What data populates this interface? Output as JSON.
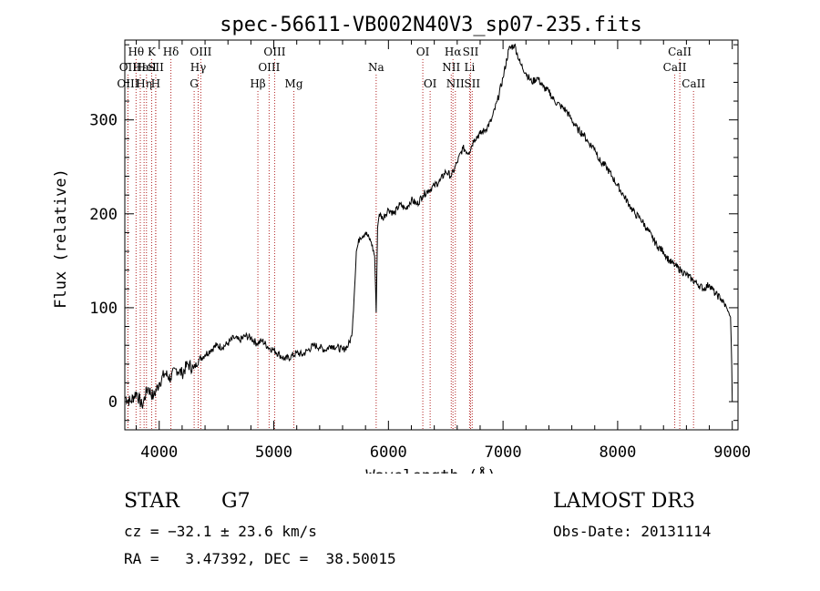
{
  "colors": {
    "spectrum": "#000000",
    "line_marker": "#b22222",
    "axis": "#000000",
    "background": "#ffffff"
  },
  "chart_data": {
    "type": "line",
    "title": "spec-56611-VB002N40V3_sp07-235.fits",
    "xlabel": "Wavelength (Å)",
    "ylabel": "Flux (relative)",
    "xlim": [
      3700,
      9050
    ],
    "ylim": [
      -30,
      385
    ],
    "xticks": [
      4000,
      5000,
      6000,
      7000,
      8000,
      9000
    ],
    "yticks": [
      0,
      100,
      200,
      300
    ],
    "grid": false,
    "series": [
      {
        "name": "spectrum",
        "x": [
          3700,
          3750,
          3800,
          3850,
          3900,
          3950,
          4000,
          4050,
          4100,
          4150,
          4200,
          4250,
          4300,
          4350,
          4400,
          4450,
          4500,
          4550,
          4600,
          4650,
          4700,
          4750,
          4800,
          4850,
          4900,
          4950,
          5000,
          5050,
          5100,
          5150,
          5200,
          5250,
          5300,
          5350,
          5400,
          5450,
          5500,
          5550,
          5600,
          5650,
          5680,
          5700,
          5720,
          5750,
          5800,
          5850,
          5880,
          5893,
          5905,
          5920,
          5950,
          6000,
          6050,
          6100,
          6150,
          6200,
          6250,
          6300,
          6350,
          6400,
          6450,
          6500,
          6550,
          6600,
          6650,
          6700,
          6750,
          6800,
          6850,
          6900,
          6950,
          7000,
          7050,
          7100,
          7150,
          7200,
          7250,
          7300,
          7350,
          7400,
          7450,
          7500,
          7550,
          7600,
          7650,
          7700,
          7750,
          7800,
          7850,
          7900,
          7950,
          8000,
          8050,
          8100,
          8150,
          8200,
          8250,
          8300,
          8350,
          8400,
          8450,
          8500,
          8550,
          8600,
          8650,
          8700,
          8750,
          8800,
          8850,
          8900,
          8950,
          8985,
          8995,
          9000
        ],
        "values": [
          5,
          0,
          10,
          -5,
          15,
          5,
          20,
          30,
          25,
          35,
          30,
          40,
          35,
          45,
          50,
          55,
          60,
          58,
          62,
          68,
          65,
          70,
          68,
          62,
          65,
          58,
          55,
          50,
          45,
          48,
          52,
          50,
          55,
          60,
          58,
          55,
          60,
          58,
          55,
          60,
          70,
          110,
          160,
          175,
          180,
          170,
          155,
          95,
          185,
          200,
          195,
          205,
          200,
          210,
          205,
          215,
          210,
          220,
          225,
          230,
          235,
          245,
          240,
          255,
          270,
          265,
          280,
          285,
          290,
          300,
          320,
          345,
          375,
          380,
          360,
          350,
          340,
          345,
          335,
          330,
          320,
          315,
          310,
          300,
          290,
          285,
          275,
          270,
          255,
          250,
          240,
          230,
          220,
          210,
          200,
          195,
          185,
          175,
          165,
          160,
          150,
          145,
          140,
          135,
          130,
          125,
          120,
          125,
          115,
          110,
          100,
          90,
          40,
          0
        ]
      }
    ],
    "spectral_lines": [
      {
        "label": "Hθ",
        "x": 3798,
        "row": 0
      },
      {
        "label": "OII",
        "x": 3727,
        "row": 1
      },
      {
        "label": "OIII",
        "x": 3727,
        "row": 2
      },
      {
        "label": "Hε",
        "x": 3835,
        "row": 1
      },
      {
        "label": "Hη",
        "x": 3868,
        "row": 2
      },
      {
        "label": "K",
        "x": 3934,
        "row": 0
      },
      {
        "label": "HeI",
        "x": 3889,
        "row": 1
      },
      {
        "label": "SII",
        "x": 3970,
        "row": 1
      },
      {
        "label": "H",
        "x": 3969,
        "row": 2
      },
      {
        "label": "Hδ",
        "x": 4102,
        "row": 0
      },
      {
        "label": "OIII",
        "x": 4363,
        "row": 0
      },
      {
        "label": "Hγ",
        "x": 4340,
        "row": 1
      },
      {
        "label": "G",
        "x": 4305,
        "row": 2
      },
      {
        "label": "Hβ",
        "x": 4861,
        "row": 2
      },
      {
        "label": "OIII",
        "x": 5007,
        "row": 0
      },
      {
        "label": "OIII",
        "x": 4959,
        "row": 1
      },
      {
        "label": "Mg",
        "x": 5175,
        "row": 2
      },
      {
        "label": "Na",
        "x": 5893,
        "row": 1
      },
      {
        "label": "OI",
        "x": 6300,
        "row": 0
      },
      {
        "label": "OI",
        "x": 6364,
        "row": 2
      },
      {
        "label": "Hα",
        "x": 6563,
        "row": 0
      },
      {
        "label": "SII",
        "x": 6717,
        "row": 0
      },
      {
        "label": "NII",
        "x": 6548,
        "row": 1
      },
      {
        "label": "Li",
        "x": 6708,
        "row": 1
      },
      {
        "label": "NII",
        "x": 6584,
        "row": 2
      },
      {
        "label": "SII",
        "x": 6731,
        "row": 2
      },
      {
        "label": "CaII",
        "x": 8542,
        "row": 0
      },
      {
        "label": "CaII",
        "x": 8498,
        "row": 1
      },
      {
        "label": "CaII",
        "x": 8662,
        "row": 2
      }
    ]
  },
  "info": {
    "object_class": "STAR",
    "subclass": "G7",
    "survey": "LAMOST DR3",
    "redshift": "cz = −32.1 ± 23.6 km/s",
    "obs_date": "Obs-Date: 20131114",
    "coords": "RA =   3.47392, DEC =  38.50015"
  }
}
